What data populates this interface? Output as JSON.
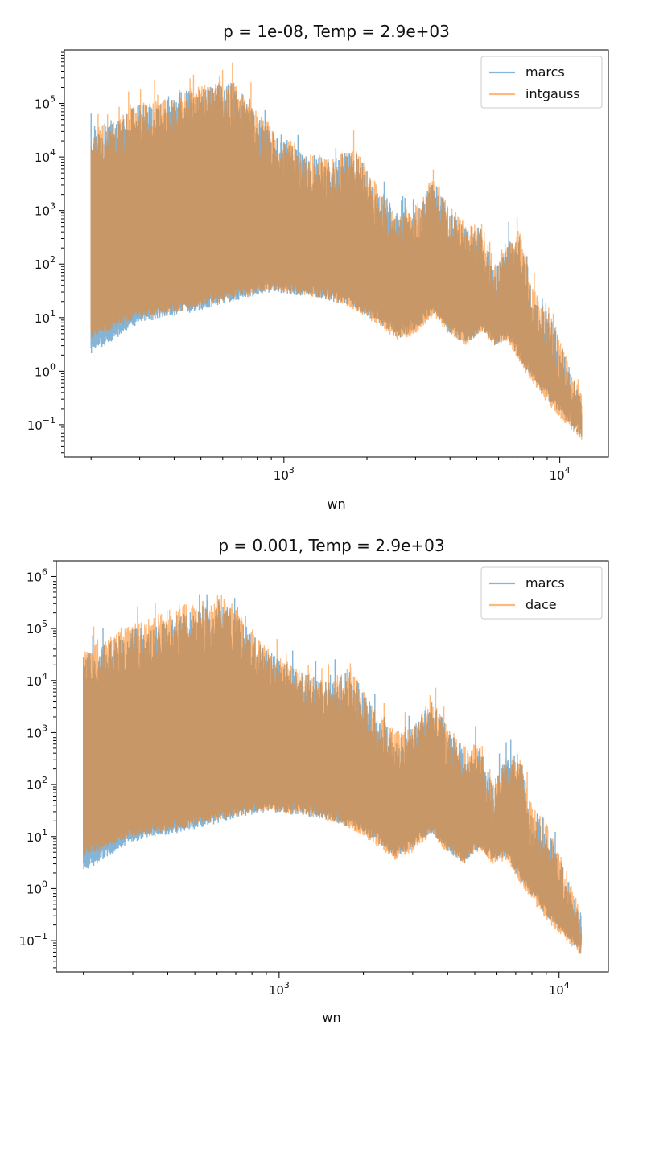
{
  "colors": {
    "marcs": "#1f77b4",
    "other": "#ff7f0e",
    "blend": "#c2956a"
  },
  "chart_data": [
    {
      "type": "line",
      "title": "p = 1e-08, Temp = 2.9e+03",
      "xlabel": "wn",
      "ylabel": "",
      "xscale": "log",
      "yscale": "log",
      "xlim": [
        160,
        15000
      ],
      "ylim": [
        0.025,
        1000000
      ],
      "x_ticks": [
        {
          "base": "10",
          "exp": "3",
          "value": 1000
        },
        {
          "base": "10",
          "exp": "4",
          "value": 10000
        }
      ],
      "y_ticks": [
        {
          "base": "10",
          "exp": "5",
          "value": 100000
        },
        {
          "base": "10",
          "exp": "4",
          "value": 10000
        },
        {
          "base": "10",
          "exp": "3",
          "value": 1000
        },
        {
          "base": "10",
          "exp": "2",
          "value": 100
        },
        {
          "base": "10",
          "exp": "1",
          "value": 10
        },
        {
          "base": "10",
          "exp": "0",
          "value": 1
        },
        {
          "base": "10",
          "exp": "−1",
          "value": 0.1
        }
      ],
      "legend": {
        "position": "top-right",
        "entries": [
          "marcs",
          "intgauss"
        ]
      },
      "series": [
        {
          "name": "marcs",
          "envelope_x": [
            200,
            300,
            450,
            650,
            900,
            1200,
            1500,
            1800,
            2200,
            2600,
            3000,
            3500,
            4000,
            4600,
            5200,
            5800,
            6500,
            7200,
            8000,
            9000,
            10500,
            12000
          ],
          "upper": [
            30000,
            100000,
            180000,
            250000,
            35000,
            12000,
            9000,
            15000,
            2500,
            900,
            1000,
            4000,
            1000,
            500,
            500,
            80,
            300,
            400,
            30,
            15,
            2,
            0.3
          ],
          "lower": [
            2,
            8,
            12,
            20,
            30,
            25,
            20,
            15,
            8,
            4,
            6,
            12,
            5,
            3,
            6,
            3,
            4,
            1.5,
            0.7,
            0.3,
            0.12,
            0.06
          ]
        },
        {
          "name": "intgauss",
          "envelope_x": [
            200,
            300,
            450,
            650,
            900,
            1200,
            1500,
            1800,
            2200,
            2600,
            3000,
            3500,
            4000,
            4600,
            5200,
            5800,
            6500,
            7200,
            8000,
            9000,
            10500,
            12000
          ],
          "upper": [
            30000,
            100000,
            200000,
            300000,
            40000,
            14000,
            10000,
            16000,
            2800,
            1000,
            1200,
            5000,
            1200,
            600,
            600,
            100,
            350,
            450,
            35,
            18,
            2.5,
            0.35
          ],
          "lower": [
            4,
            10,
            14,
            22,
            32,
            26,
            20,
            14,
            7,
            3.5,
            5,
            11,
            4.5,
            3,
            5.5,
            3,
            3.5,
            1.3,
            0.6,
            0.25,
            0.1,
            0.05
          ]
        }
      ]
    },
    {
      "type": "line",
      "title": "p = 0.001, Temp = 2.9e+03",
      "xlabel": "wn",
      "ylabel": "",
      "xscale": "log",
      "yscale": "log",
      "xlim": [
        160,
        15000
      ],
      "ylim": [
        0.025,
        2000000
      ],
      "x_ticks": [
        {
          "base": "10",
          "exp": "3",
          "value": 1000
        },
        {
          "base": "10",
          "exp": "4",
          "value": 10000
        }
      ],
      "y_ticks": [
        {
          "base": "10",
          "exp": "6",
          "value": 1000000
        },
        {
          "base": "10",
          "exp": "5",
          "value": 100000
        },
        {
          "base": "10",
          "exp": "4",
          "value": 10000
        },
        {
          "base": "10",
          "exp": "3",
          "value": 1000
        },
        {
          "base": "10",
          "exp": "2",
          "value": 100
        },
        {
          "base": "10",
          "exp": "1",
          "value": 10
        },
        {
          "base": "10",
          "exp": "0",
          "value": 1
        },
        {
          "base": "10",
          "exp": "−1",
          "value": 0.1
        }
      ],
      "legend": {
        "position": "top-right",
        "entries": [
          "marcs",
          "dace"
        ]
      },
      "series": [
        {
          "name": "marcs",
          "envelope_x": [
            200,
            300,
            450,
            650,
            900,
            1200,
            1500,
            1800,
            2200,
            2600,
            3000,
            3500,
            4000,
            4600,
            5200,
            5800,
            6500,
            7200,
            8000,
            9000,
            10500,
            12000
          ],
          "upper": [
            30000,
            100000,
            200000,
            300000,
            40000,
            14000,
            10000,
            16000,
            2800,
            1000,
            1200,
            5000,
            1200,
            600,
            600,
            100,
            350,
            450,
            35,
            18,
            2.5,
            0.35
          ],
          "lower": [
            2,
            8,
            12,
            20,
            30,
            25,
            20,
            15,
            8,
            4,
            6,
            12,
            5,
            3,
            6,
            3,
            4,
            1.5,
            0.7,
            0.3,
            0.12,
            0.06
          ]
        },
        {
          "name": "dace",
          "envelope_x": [
            200,
            300,
            450,
            650,
            900,
            1200,
            1500,
            1800,
            2200,
            2600,
            3000,
            3500,
            4000,
            4600,
            5200,
            5800,
            6500,
            7200,
            8000,
            9000,
            10500,
            12000
          ],
          "upper": [
            40000,
            120000,
            300000,
            400000,
            45000,
            15000,
            11000,
            18000,
            3000,
            1100,
            1300,
            6000,
            1300,
            650,
            650,
            110,
            380,
            480,
            38,
            20,
            2.8,
            0.38
          ],
          "lower": [
            4,
            10,
            14,
            22,
            32,
            26,
            20,
            14,
            7,
            3.5,
            5,
            11,
            4.5,
            3,
            5.5,
            3,
            3.5,
            1.3,
            0.6,
            0.25,
            0.1,
            0.05
          ]
        }
      ]
    }
  ]
}
